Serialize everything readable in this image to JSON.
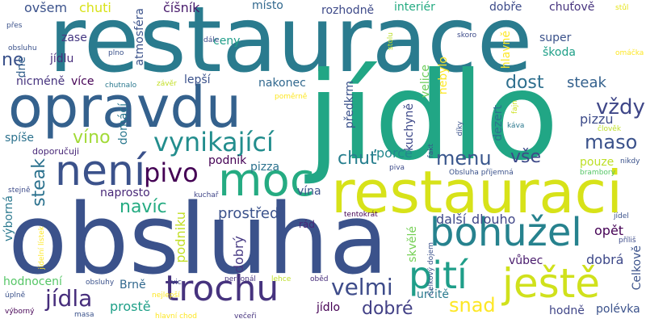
{
  "background": "#ffffff",
  "words": [
    {
      "id": "w0",
      "text": "restaurace",
      "color": "#2a7b8e"
    },
    {
      "id": "w1",
      "text": "jídlo",
      "color": "#21a685"
    },
    {
      "id": "w2",
      "text": "obsluha",
      "color": "#3b528b"
    },
    {
      "id": "w3",
      "text": "opravdu",
      "color": "#34618d"
    },
    {
      "id": "w4",
      "text": "restauraci",
      "color": "#d7e219"
    },
    {
      "id": "w5",
      "text": "moc",
      "color": "#25ab82"
    },
    {
      "id": "w6",
      "text": "není",
      "color": "#3b528b"
    },
    {
      "id": "w7",
      "text": "bohužel",
      "color": "#26828e"
    },
    {
      "id": "w8",
      "text": "pití",
      "color": "#1f9e89"
    },
    {
      "id": "w9",
      "text": "ještě",
      "color": "#d0e11c"
    },
    {
      "id": "w10",
      "text": "trochu",
      "color": "#46337e"
    },
    {
      "id": "w11",
      "text": "vynikající",
      "color": "#228d8d"
    },
    {
      "id": "w12",
      "text": "pivo",
      "color": "#440154"
    },
    {
      "id": "w13",
      "text": "velmi",
      "color": "#3e4c8a"
    },
    {
      "id": "w14",
      "text": "jídla",
      "color": "#472e7c"
    },
    {
      "id": "w15",
      "text": "menu",
      "color": "#39568c"
    },
    {
      "id": "w16",
      "text": "maso",
      "color": "#3b528b"
    },
    {
      "id": "w17",
      "text": "vždy",
      "color": "#3f4788"
    },
    {
      "id": "w18",
      "text": "dost",
      "color": "#2e6f8e"
    },
    {
      "id": "w19",
      "text": "chuť",
      "color": "#277f8e"
    },
    {
      "id": "w20",
      "text": "vše",
      "color": "#3e4a89"
    },
    {
      "id": "w21",
      "text": "snad",
      "color": "#fde725"
    },
    {
      "id": "w22",
      "text": "dobré",
      "color": "#424086"
    },
    {
      "id": "w23",
      "text": "víno",
      "color": "#a2da37"
    },
    {
      "id": "w24",
      "text": "navíc",
      "color": "#25ab82"
    },
    {
      "id": "w25",
      "text": "steak",
      "color": "#2c728e"
    },
    {
      "id": "w26",
      "text": "výborné",
      "color": "#34618d"
    },
    {
      "id": "w27",
      "text": "pizzu",
      "color": "#3e4c8a"
    },
    {
      "id": "w28",
      "text": "porce",
      "color": "#23888e"
    },
    {
      "id": "w29",
      "text": "prostředí",
      "color": "#3b528b"
    },
    {
      "id": "w30",
      "text": "další",
      "color": "#3e4989"
    },
    {
      "id": "w31",
      "text": "dlouho",
      "color": "#404688"
    },
    {
      "id": "w32",
      "text": "opět",
      "color": "#440154"
    },
    {
      "id": "w33",
      "text": "vůbec",
      "color": "#481a6c"
    },
    {
      "id": "w34",
      "text": "dobrá",
      "color": "#3e4989"
    },
    {
      "id": "w35",
      "text": "prostě",
      "color": "#1fa088"
    },
    {
      "id": "w36",
      "text": "jídlo",
      "color": "#440154"
    },
    {
      "id": "w37",
      "text": "hodně",
      "color": "#404688"
    },
    {
      "id": "w38",
      "text": "polévka",
      "color": "#3b528b"
    },
    {
      "id": "w39",
      "text": "určitě",
      "color": "#2a7b8e"
    },
    {
      "id": "w40",
      "text": "skvělé",
      "color": "#75d054"
    },
    {
      "id": "w41",
      "text": "Celkově",
      "color": "#3b528b"
    },
    {
      "id": "w42",
      "text": "Brně",
      "color": "#31688e"
    },
    {
      "id": "w43",
      "text": "hodnocení",
      "color": "#56c667"
    },
    {
      "id": "w44",
      "text": "naprosto",
      "color": "#482878"
    },
    {
      "id": "w45",
      "text": "výborná",
      "color": "#2a788e"
    },
    {
      "id": "w46",
      "text": "pizza",
      "color": "#2c728e"
    },
    {
      "id": "w47",
      "text": "podnik",
      "color": "#440154"
    },
    {
      "id": "w48",
      "text": "vína",
      "color": "#3b528b"
    },
    {
      "id": "w49",
      "text": "podniku",
      "color": "#c2df23"
    },
    {
      "id": "w50",
      "text": "dobrý",
      "color": "#453882"
    },
    {
      "id": "w51",
      "text": "domácí",
      "color": "#2a788e"
    },
    {
      "id": "w52",
      "text": "spíše",
      "color": "#2c728e"
    },
    {
      "id": "w53",
      "text": "nicméně",
      "color": "#46337e"
    },
    {
      "id": "w54",
      "text": "více",
      "color": "#440154"
    },
    {
      "id": "w55",
      "text": "lepší",
      "color": "#3b528b"
    },
    {
      "id": "w56",
      "text": "nakonec",
      "color": "#31688e"
    },
    {
      "id": "w57",
      "text": "předkrm",
      "color": "#3b528b"
    },
    {
      "id": "w58",
      "text": "kuchyně",
      "color": "#3e4989"
    },
    {
      "id": "w59",
      "text": "velice",
      "color": "#6ccd5a"
    },
    {
      "id": "w60",
      "text": "nebylo",
      "color": "#fde725"
    },
    {
      "id": "w61",
      "text": "dezert",
      "color": "#2c728e"
    },
    {
      "id": "w62",
      "text": "super",
      "color": "#3b528b"
    },
    {
      "id": "w63",
      "text": "škoda",
      "color": "#1fa088"
    },
    {
      "id": "w64",
      "text": "pouze",
      "color": "#bddf26"
    },
    {
      "id": "w65",
      "text": "atmosféra",
      "color": "#3b528b"
    },
    {
      "id": "w66",
      "text": "ceny",
      "color": "#1f9e89"
    },
    {
      "id": "w67",
      "text": "jídlu",
      "color": "#472d7b"
    },
    {
      "id": "w68",
      "text": "zase",
      "color": "#453882"
    },
    {
      "id": "w69",
      "text": "dne",
      "color": "#34618d"
    },
    {
      "id": "w70",
      "text": "ne",
      "color": "#3b528b"
    },
    {
      "id": "w71",
      "text": "ovšem",
      "color": "#3b528b"
    },
    {
      "id": "w72",
      "text": "chuti",
      "color": "#d8e219"
    },
    {
      "id": "w73",
      "text": "číšník",
      "color": "#481a6c"
    },
    {
      "id": "w74",
      "text": "místo",
      "color": "#31688e"
    },
    {
      "id": "w75",
      "text": "rozhodně",
      "color": "#3e4a89"
    },
    {
      "id": "w76",
      "text": "interiér",
      "color": "#25ab82"
    },
    {
      "id": "w77",
      "text": "dobře",
      "color": "#3e4c8a"
    },
    {
      "id": "w78",
      "text": "chuťově",
      "color": "#46337e"
    },
    {
      "id": "w79",
      "text": "hlavně",
      "color": "#fde725"
    },
    {
      "id": "w80",
      "text": "doporučuji",
      "color": "#482878"
    },
    {
      "id": "w81",
      "text": "chutnalo",
      "color": "#2a788e"
    },
    {
      "id": "w82",
      "text": "závěr",
      "color": "#c2df23"
    },
    {
      "id": "w83",
      "text": "poměrně",
      "color": "#fde725"
    },
    {
      "id": "w84",
      "text": "plno",
      "color": "#3b528b"
    },
    {
      "id": "w85",
      "text": "dále",
      "color": "#3e4c8a"
    },
    {
      "id": "w86",
      "text": "stolu",
      "color": "#b8de29"
    },
    {
      "id": "w87",
      "text": "skoro",
      "color": "#3e4c8a"
    },
    {
      "id": "w88",
      "text": "stůl",
      "color": "#e5e419"
    },
    {
      "id": "w89",
      "text": "omáčka",
      "color": "#fde725"
    },
    {
      "id": "w90",
      "text": "přes",
      "color": "#3b528b"
    },
    {
      "id": "w91",
      "text": "obsluhu",
      "color": "#3b528b"
    },
    {
      "id": "w92",
      "text": "fajn",
      "color": "#cde11d"
    },
    {
      "id": "w93",
      "text": "káva",
      "color": "#2a788e"
    },
    {
      "id": "w94",
      "text": "člověk",
      "color": "#bddf26"
    },
    {
      "id": "w95",
      "text": "díky",
      "color": "#3b528b"
    },
    {
      "id": "w96",
      "text": "fakt",
      "color": "#3b528b"
    },
    {
      "id": "w97",
      "text": "piva",
      "color": "#3e4c8a"
    },
    {
      "id": "w98",
      "text": "Obsluha příjemná",
      "color": "#3b528b"
    },
    {
      "id": "w99",
      "text": "brambory",
      "color": "#56c667"
    },
    {
      "id": "w100",
      "text": "nikdy",
      "color": "#3b528b"
    },
    {
      "id": "w101",
      "text": "stejně",
      "color": "#3e4c8a"
    },
    {
      "id": "w102",
      "text": "kuchař",
      "color": "#404688"
    },
    {
      "id": "w103",
      "text": "rád",
      "color": "#482878"
    },
    {
      "id": "w104",
      "text": "tentokrát",
      "color": "#440154"
    },
    {
      "id": "w105",
      "text": "Celkový dojem",
      "color": "#3b528b"
    },
    {
      "id": "w106",
      "text": "jídel",
      "color": "#3b528b"
    },
    {
      "id": "w107",
      "text": "příliš",
      "color": "#3e4c8a"
    },
    {
      "id": "w108",
      "text": "jídelní lístek",
      "color": "#fde725"
    },
    {
      "id": "w109",
      "text": "obsluhy",
      "color": "#3b528b"
    },
    {
      "id": "w110",
      "text": "oběd",
      "color": "#472d7b"
    },
    {
      "id": "w111",
      "text": "vic",
      "color": "#3e4989"
    },
    {
      "id": "w112",
      "text": "personál",
      "color": "#46337e"
    },
    {
      "id": "w113",
      "text": "lehce",
      "color": "#bddf26"
    },
    {
      "id": "w114",
      "text": "úplně",
      "color": "#3b528b"
    },
    {
      "id": "w115",
      "text": "nejlepší",
      "color": "#fde725"
    },
    {
      "id": "w116",
      "text": "výborný",
      "color": "#440154"
    },
    {
      "id": "w117",
      "text": "masa",
      "color": "#3b528b"
    },
    {
      "id": "w118",
      "text": "hlavní chod",
      "color": "#fde725"
    },
    {
      "id": "w119",
      "text": "večeři",
      "color": "#46337e"
    }
  ]
}
